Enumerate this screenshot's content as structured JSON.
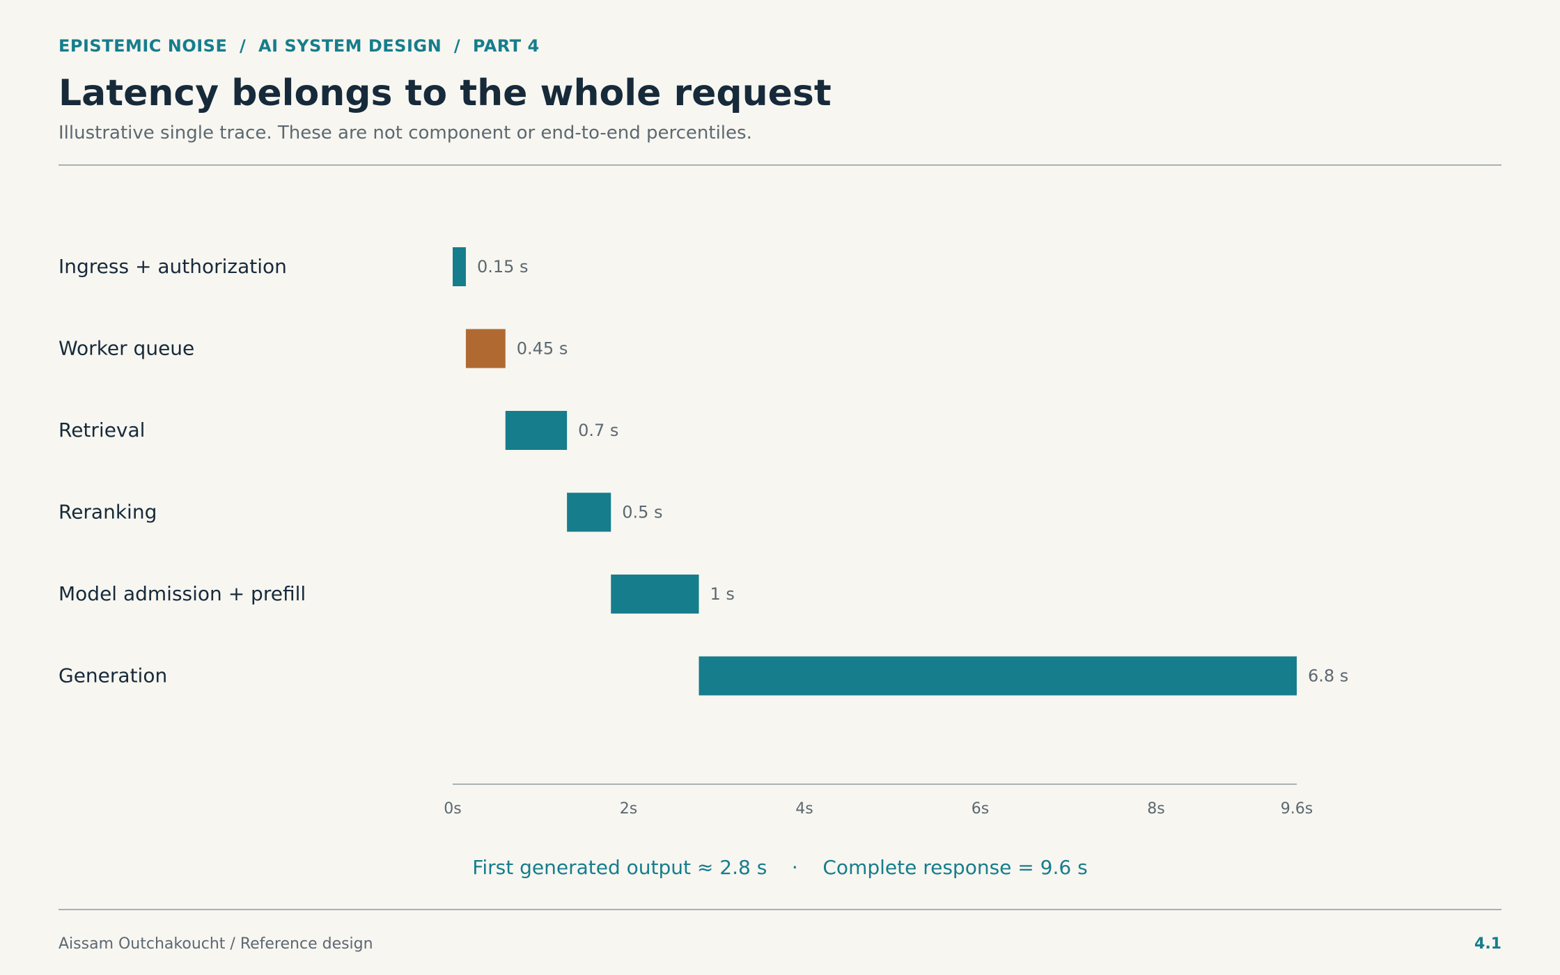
{
  "header": {
    "eyebrow": "EPISTEMIC NOISE  /  AI SYSTEM DESIGN  /  PART 4",
    "title": "Latency belongs to the whole request",
    "subtitle": "Illustrative single trace. These are not component or end-to-end percentiles."
  },
  "chart_data": {
    "type": "bar",
    "orientation": "horizontal-waterfall",
    "categories": [
      "Ingress + authorization",
      "Worker queue",
      "Retrieval",
      "Reranking",
      "Model admission + prefill",
      "Generation"
    ],
    "series": [
      {
        "start": [
          0,
          0.15,
          0.6,
          1.3,
          1.8,
          2.8
        ],
        "values": [
          0.15,
          0.45,
          0.7,
          0.5,
          1,
          6.8
        ],
        "labels": [
          "0.15 s",
          "0.45 s",
          "0.7 s",
          "0.5 s",
          "1 s",
          "6.8 s"
        ],
        "colors": [
          "#167d8c",
          "#b06a31",
          "#167d8c",
          "#167d8c",
          "#167d8c",
          "#167d8c"
        ]
      }
    ],
    "xlim": [
      0,
      9.6
    ],
    "xticks": [
      {
        "value": 0,
        "label": "0s"
      },
      {
        "value": 2,
        "label": "2s"
      },
      {
        "value": 4,
        "label": "4s"
      },
      {
        "value": 6,
        "label": "6s"
      },
      {
        "value": 8,
        "label": "8s"
      },
      {
        "value": 9.6,
        "label": "9.6s"
      }
    ],
    "grid": false
  },
  "summary": "First generated output ≈ 2.8 s    ·    Complete response = 9.6 s",
  "footer": {
    "left": "Aissam Outchakoucht  /  Reference design",
    "right": "4.1"
  },
  "colors": {
    "accent": "#167d8c",
    "highlight": "#b06a31",
    "text": "#172a3a",
    "muted": "#5c6870",
    "background": "#f7f6f1"
  }
}
